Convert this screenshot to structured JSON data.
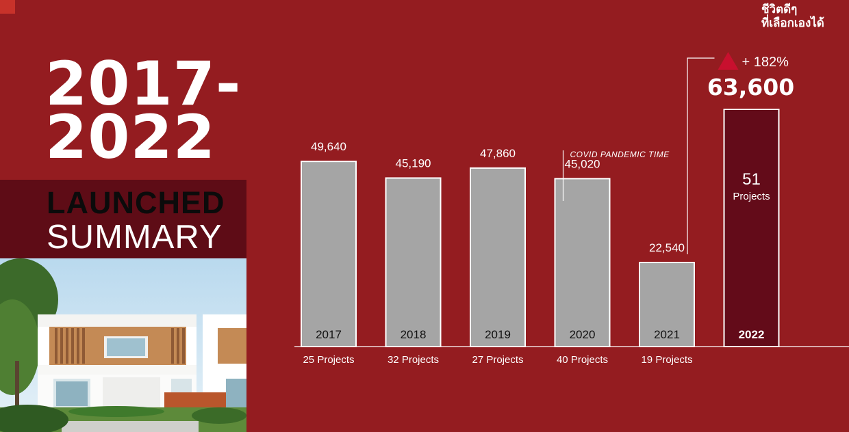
{
  "branding": {
    "logo_line1": "ชีวิตดีๆ",
    "logo_line2": "ที่เลือกเองได้"
  },
  "headline": {
    "years": "2017-\n2022",
    "launched": "LAUNCHED",
    "summary": "SUMMARY"
  },
  "colors": {
    "background": "#941c20",
    "bar": "#a5a5a5",
    "highlight_bar": "#630b19",
    "band": "#5e0c16",
    "growth_arrow": "#c8102e"
  },
  "chart_data": {
    "type": "bar",
    "categories": [
      "2017",
      "2018",
      "2019",
      "2020",
      "2021",
      "2022"
    ],
    "values": [
      49640,
      45190,
      47860,
      45020,
      22540,
      63600
    ],
    "value_labels": [
      "49,640",
      "45,190",
      "47,860",
      "45,020",
      "22,540",
      ""
    ],
    "project_labels": [
      "25 Projects",
      "32 Projects",
      "27 Projects",
      "40 Projects",
      "19 Projects",
      ""
    ],
    "highlight": {
      "category": "2022",
      "count": "51",
      "count_label": "Projects",
      "growth": "+ 182%",
      "value_label": "63,600"
    },
    "annotation": "COVID PANDEMIC TIME",
    "ylim": [
      0,
      70000
    ],
    "grid": false,
    "legend": "none"
  }
}
